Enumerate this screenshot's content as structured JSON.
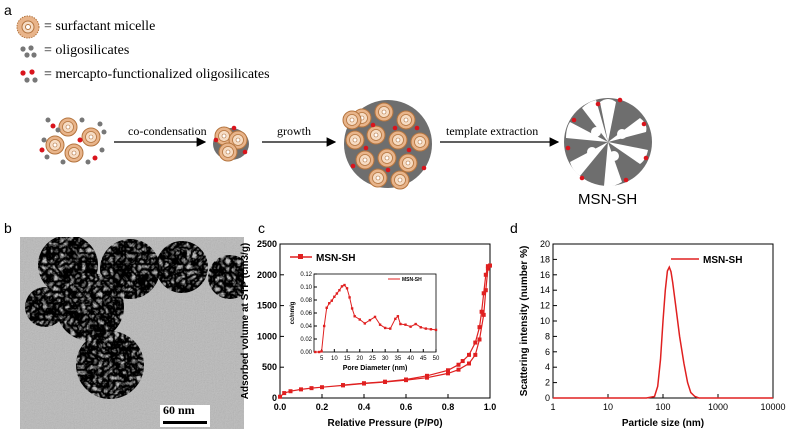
{
  "panel_labels": {
    "a": "a",
    "b": "b",
    "c": "c",
    "d": "d"
  },
  "scheme": {
    "legend": [
      {
        "icon": "micelle-icon",
        "text": "= surfactant micelle"
      },
      {
        "icon": "oligosilicate-dots-icon",
        "text": "= oligosilicates"
      },
      {
        "icon": "mercapto-dots-icon",
        "text": "= mercapto-functionalized oligosilicates"
      }
    ],
    "steps": [
      "co-condensation",
      "growth",
      "template extraction"
    ],
    "product": "MSN-SH",
    "colors": {
      "micelle_outer": "#e8b48a",
      "micelle_core": "#f6dcc4",
      "silica": "#6e6e6e",
      "thiol": "#d9141c"
    }
  },
  "tem": {
    "scale_bar_text": "60 nm"
  },
  "chart_data": [
    {
      "type": "line",
      "xlabel": "Relative Pressure (P/P0)",
      "ylabel": "Adsorbed volume at STP (cm3/g)",
      "xticks": [
        "0.0",
        "0.2",
        "0.4",
        "0.6",
        "0.8",
        "1.0"
      ],
      "yticks": [
        "0",
        "500",
        "1000",
        "1500",
        "2000",
        "2500"
      ],
      "xlim": [
        0,
        1.0
      ],
      "ylim": [
        0,
        2500
      ],
      "legend": "MSN-SH",
      "color": "#e02020",
      "series": [
        {
          "name": "MSN-SH",
          "x": [
            0.0,
            0.02,
            0.05,
            0.1,
            0.15,
            0.2,
            0.3,
            0.4,
            0.5,
            0.6,
            0.7,
            0.8,
            0.85,
            0.9,
            0.93,
            0.95,
            0.97,
            0.98,
            0.99,
            1.0
          ],
          "y": [
            20,
            80,
            110,
            140,
            160,
            175,
            205,
            235,
            260,
            290,
            330,
            400,
            460,
            560,
            700,
            950,
            1350,
            1750,
            2100,
            2150
          ]
        },
        {
          "name": "MSN-SH",
          "x": [
            1.0,
            0.99,
            0.98,
            0.97,
            0.96,
            0.95,
            0.93,
            0.9,
            0.87,
            0.85,
            0.8,
            0.7,
            0.6,
            0.5,
            0.4,
            0.3
          ],
          "y": [
            2150,
            2140,
            2000,
            1700,
            1400,
            1150,
            900,
            700,
            600,
            540,
            450,
            360,
            300,
            265,
            240,
            210
          ]
        }
      ],
      "inset": {
        "type": "line",
        "xlabel": "Pore Diameter (nm)",
        "ylabel": "cc/nm/g",
        "xticks": [
          "5",
          "10",
          "15",
          "20",
          "25",
          "30",
          "35",
          "40",
          "45",
          "50"
        ],
        "yticks": [
          "0.00",
          "0.02",
          "0.04",
          "0.06",
          "0.08",
          "0.10",
          "0.12"
        ],
        "xlim": [
          2,
          50
        ],
        "ylim": [
          0,
          0.12
        ],
        "legend": "MSN-SH",
        "x": [
          2.5,
          4,
          5,
          6,
          7,
          8,
          9,
          10,
          11,
          12,
          13,
          14,
          15,
          16,
          17,
          18,
          20,
          22,
          24,
          26,
          28,
          30,
          32,
          34,
          35,
          36,
          38,
          40,
          42,
          44,
          46,
          48,
          50
        ],
        "y": [
          0.0,
          0.0,
          0.001,
          0.04,
          0.068,
          0.075,
          0.079,
          0.085,
          0.09,
          0.095,
          0.101,
          0.103,
          0.098,
          0.084,
          0.067,
          0.055,
          0.05,
          0.044,
          0.049,
          0.054,
          0.042,
          0.037,
          0.036,
          0.051,
          0.055,
          0.043,
          0.042,
          0.039,
          0.043,
          0.038,
          0.036,
          0.035,
          0.034
        ]
      }
    },
    {
      "type": "line",
      "xlabel": "Particle size (nm)",
      "ylabel": "Scattering intensity (number %)",
      "xscale": "log",
      "xticks": [
        "1",
        "10",
        "100",
        "1000",
        "10000"
      ],
      "yticks": [
        "0",
        "2",
        "4",
        "6",
        "8",
        "10",
        "12",
        "14",
        "16",
        "18",
        "20"
      ],
      "xlim": [
        1,
        10000
      ],
      "ylim": [
        0,
        20
      ],
      "legend": "MSN-SH",
      "color": "#e02020",
      "series": [
        {
          "name": "MSN-SH",
          "x": [
            1,
            50,
            70,
            80,
            90,
            100,
            110,
            120,
            130,
            140,
            150,
            170,
            200,
            240,
            280,
            320,
            380,
            450,
            1000,
            10000
          ],
          "y": [
            0,
            0,
            0.2,
            1.5,
            5,
            10,
            14,
            16.5,
            17,
            16.4,
            15,
            12,
            8,
            4.5,
            2,
            0.7,
            0.2,
            0,
            0,
            0
          ]
        }
      ]
    }
  ]
}
